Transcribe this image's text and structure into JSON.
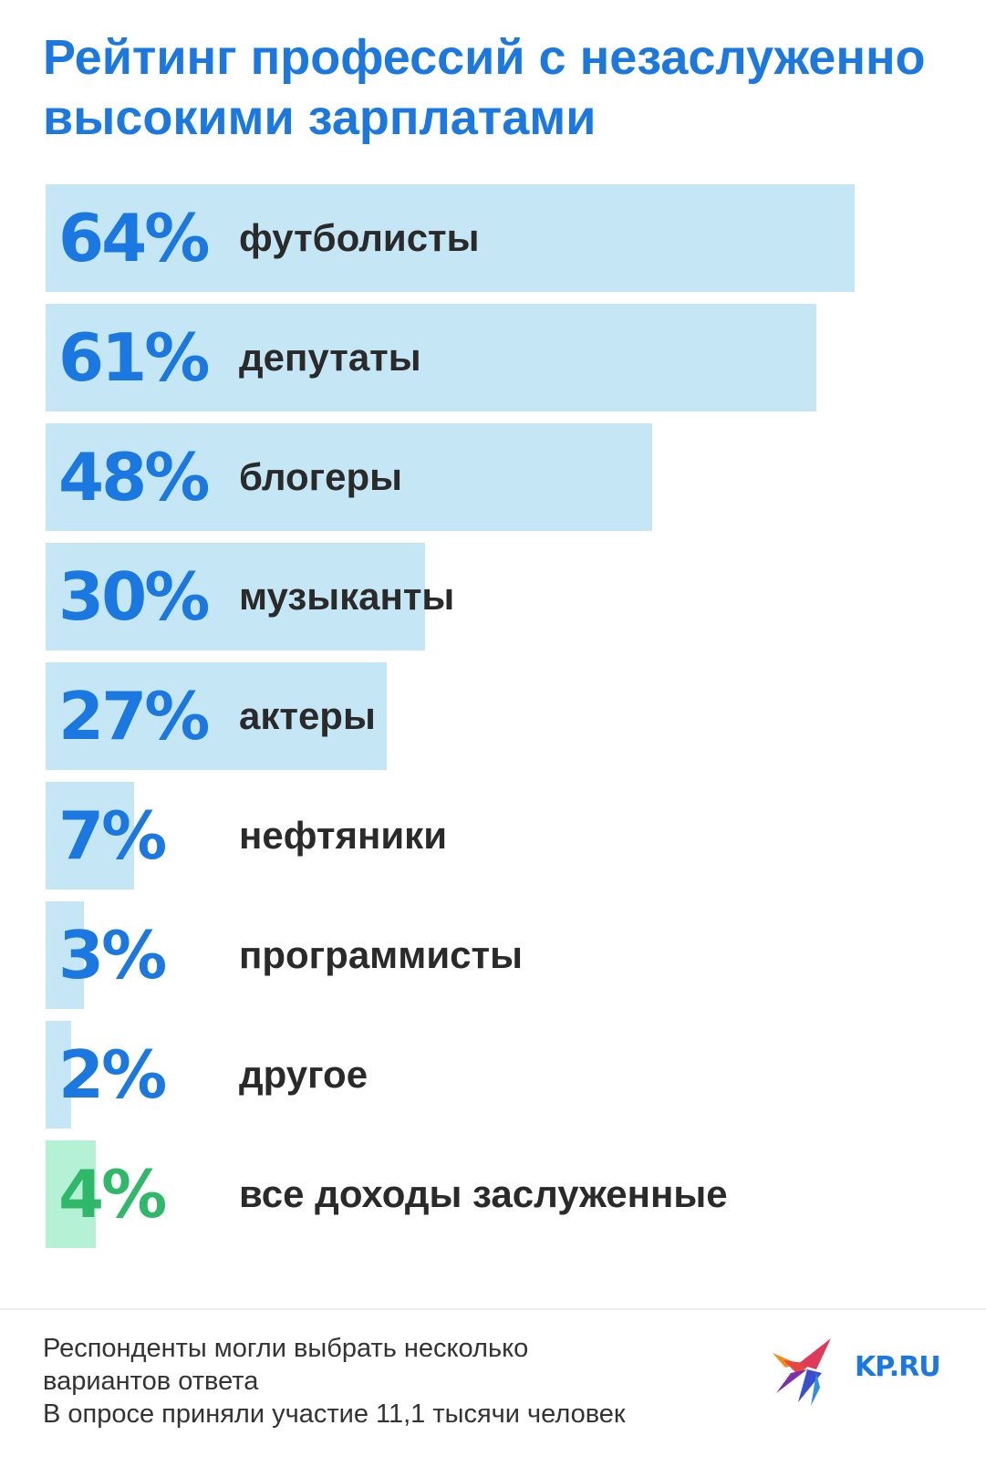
{
  "title": "Рейтинг профессий с незаслуженно высокими зарплатами",
  "colors": {
    "title": "#1a78e0",
    "bar": "#c5e7f5",
    "bar_highlight": "#b5f2d5",
    "value": "#1a78e0",
    "value_highlight": "#2fb869",
    "label": "#2a2a2a"
  },
  "chart_data": {
    "type": "bar",
    "orientation": "horizontal",
    "title": "Рейтинг профессий с незаслуженно высокими зарплатами",
    "xlabel": "",
    "ylabel": "",
    "value_unit": "%",
    "categories": [
      "футболисты",
      "депутаты",
      "блогеры",
      "музыканты",
      "актеры",
      "нефтяники",
      "программисты",
      "другое",
      "все доходы заслуженные"
    ],
    "values": [
      64,
      61,
      48,
      30,
      27,
      7,
      3,
      2,
      4
    ],
    "value_labels": [
      "64%",
      "61%",
      "48%",
      "30%",
      "27%",
      "7%",
      "3%",
      "2%",
      "4%"
    ],
    "highlighted_category": "все доходы заслуженные",
    "xlim": [
      0,
      64
    ],
    "grid": false
  },
  "footnote": {
    "line1": "Респонденты могли выбрать несколько",
    "line2": "вариантов ответа",
    "line3": "В опросе приняли участие 11,1 тысячи человек"
  },
  "logo": {
    "text": "KP.RU",
    "icon": "kp-bird-logo-icon"
  }
}
